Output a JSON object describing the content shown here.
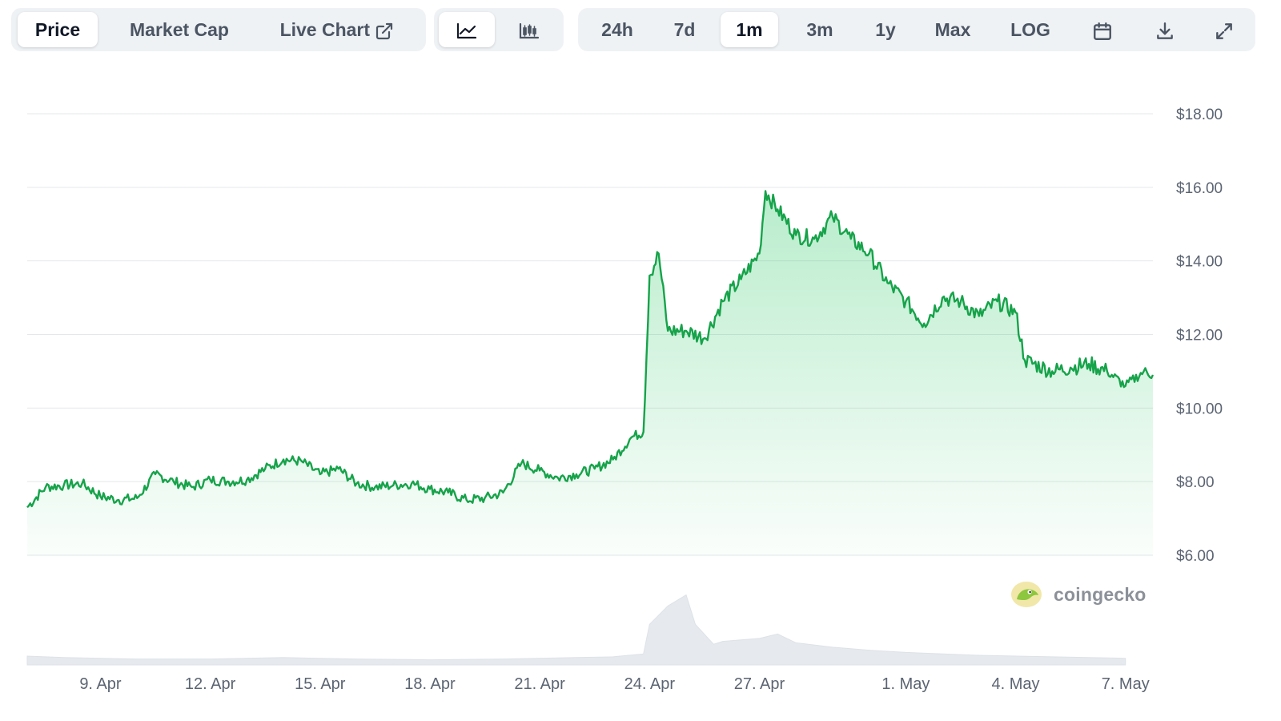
{
  "toolbar": {
    "tabs": [
      {
        "label": "Price",
        "active": true
      },
      {
        "label": "Market Cap",
        "active": false
      },
      {
        "label": "Live Chart",
        "active": false,
        "icon": "external-link-icon"
      }
    ],
    "chart_type_buttons": [
      {
        "icon": "line-chart-icon",
        "active": true
      },
      {
        "icon": "candlestick-chart-icon",
        "active": false
      }
    ],
    "ranges": [
      {
        "label": "24h",
        "active": false
      },
      {
        "label": "7d",
        "active": false
      },
      {
        "label": "1m",
        "active": true
      },
      {
        "label": "3m",
        "active": false
      },
      {
        "label": "1y",
        "active": false
      },
      {
        "label": "Max",
        "active": false
      },
      {
        "label": "LOG",
        "active": false
      }
    ],
    "action_icons": [
      "calendar-icon",
      "download-icon",
      "expand-icon"
    ]
  },
  "watermark": {
    "text": "coingecko"
  },
  "colors": {
    "line": "#16a34a",
    "fill": "#22c55e",
    "grid": "#e5e7eb",
    "volume": "#e6eaee"
  },
  "chart_data": {
    "type": "area",
    "title": "",
    "xlabel": "",
    "ylabel": "",
    "x_tick_labels": [
      "9. Apr",
      "12. Apr",
      "15. Apr",
      "18. Apr",
      "21. Apr",
      "24. Apr",
      "27. Apr",
      "1. May",
      "4. May",
      "7. May"
    ],
    "y_tick_labels": [
      "$6.00",
      "$8.00",
      "$10.00",
      "$12.00",
      "$14.00",
      "$16.00",
      "$18.00"
    ],
    "ylim": [
      6,
      18
    ],
    "xlim": [
      "2024-04-07",
      "2024-05-07"
    ],
    "grid": true,
    "series": [
      {
        "points": [
          [
            "2024-04-07",
            7.3
          ],
          [
            "2024-04-07T12:00",
            7.85
          ],
          [
            "2024-04-08",
            7.9
          ],
          [
            "2024-04-08T12:00",
            7.95
          ],
          [
            "2024-04-09",
            7.6
          ],
          [
            "2024-04-09T12:00",
            7.5
          ],
          [
            "2024-04-10",
            7.55
          ],
          [
            "2024-04-10T12:00",
            8.2
          ],
          [
            "2024-04-11",
            8.0
          ],
          [
            "2024-04-11T12:00",
            7.85
          ],
          [
            "2024-04-12",
            8.05
          ],
          [
            "2024-04-12T12:00",
            8.0
          ],
          [
            "2024-04-13",
            8.05
          ],
          [
            "2024-04-13T12:00",
            8.35
          ],
          [
            "2024-04-14",
            8.6
          ],
          [
            "2024-04-14T12:00",
            8.55
          ],
          [
            "2024-04-15",
            8.2
          ],
          [
            "2024-04-15T12:00",
            8.35
          ],
          [
            "2024-04-16",
            7.95
          ],
          [
            "2024-04-16T12:00",
            7.85
          ],
          [
            "2024-04-17",
            7.9
          ],
          [
            "2024-04-17T12:00",
            7.95
          ],
          [
            "2024-04-18",
            7.8
          ],
          [
            "2024-04-18T12:00",
            7.7
          ],
          [
            "2024-04-19",
            7.5
          ],
          [
            "2024-04-19T12:00",
            7.55
          ],
          [
            "2024-04-20",
            7.7
          ],
          [
            "2024-04-20T12:00",
            8.5
          ],
          [
            "2024-04-21",
            8.3
          ],
          [
            "2024-04-21T12:00",
            8.1
          ],
          [
            "2024-04-22",
            8.2
          ],
          [
            "2024-04-22T12:00",
            8.35
          ],
          [
            "2024-04-23",
            8.6
          ],
          [
            "2024-04-23T12:00",
            9.2
          ],
          [
            "2024-04-23T20:00",
            9.35
          ],
          [
            "2024-04-24",
            13.6
          ],
          [
            "2024-04-24T06:00",
            14.2
          ],
          [
            "2024-04-24T12:00",
            12.1
          ],
          [
            "2024-04-25",
            12.1
          ],
          [
            "2024-04-25T12:00",
            11.9
          ],
          [
            "2024-04-26",
            12.9
          ],
          [
            "2024-04-26T12:00",
            13.5
          ],
          [
            "2024-04-27",
            14.2
          ],
          [
            "2024-04-27T04:00",
            15.9
          ],
          [
            "2024-04-27T12:00",
            15.4
          ],
          [
            "2024-04-28",
            14.7
          ],
          [
            "2024-04-28T12:00",
            14.6
          ],
          [
            "2024-04-29",
            15.2
          ],
          [
            "2024-04-29T12:00",
            14.6
          ],
          [
            "2024-04-30",
            14.2
          ],
          [
            "2024-04-30T12:00",
            13.4
          ],
          [
            "2024-05-01",
            12.9
          ],
          [
            "2024-05-01T12:00",
            12.3
          ],
          [
            "2024-05-02",
            13.0
          ],
          [
            "2024-05-02T12:00",
            12.9
          ],
          [
            "2024-05-03",
            12.5
          ],
          [
            "2024-05-03T12:00",
            12.9
          ],
          [
            "2024-05-04",
            12.6
          ],
          [
            "2024-05-04T06:00",
            11.3
          ],
          [
            "2024-05-05",
            11.0
          ],
          [
            "2024-05-05T12:00",
            11.1
          ],
          [
            "2024-05-06",
            11.2
          ],
          [
            "2024-05-06T12:00",
            11.0
          ],
          [
            "2024-05-07",
            10.6
          ],
          [
            "2024-05-07T12:00",
            11.0
          ],
          [
            "2024-05-07T18:00",
            10.9
          ]
        ]
      }
    ],
    "volume": [
      [
        "2024-04-07",
        0.12
      ],
      [
        "2024-04-08",
        0.1
      ],
      [
        "2024-04-10",
        0.08
      ],
      [
        "2024-04-12",
        0.08
      ],
      [
        "2024-04-14",
        0.1
      ],
      [
        "2024-04-16",
        0.08
      ],
      [
        "2024-04-18",
        0.07
      ],
      [
        "2024-04-20",
        0.08
      ],
      [
        "2024-04-22",
        0.1
      ],
      [
        "2024-04-23",
        0.11
      ],
      [
        "2024-04-23T20:00",
        0.15
      ],
      [
        "2024-04-24",
        0.55
      ],
      [
        "2024-04-24T12:00",
        0.8
      ],
      [
        "2024-04-25",
        0.95
      ],
      [
        "2024-04-25T06:00",
        0.55
      ],
      [
        "2024-04-25T18:00",
        0.28
      ],
      [
        "2024-04-26",
        0.32
      ],
      [
        "2024-04-27",
        0.36
      ],
      [
        "2024-04-27T12:00",
        0.42
      ],
      [
        "2024-04-28",
        0.3
      ],
      [
        "2024-04-29",
        0.24
      ],
      [
        "2024-04-30",
        0.2
      ],
      [
        "2024-05-01",
        0.17
      ],
      [
        "2024-05-03",
        0.13
      ],
      [
        "2024-05-05",
        0.11
      ],
      [
        "2024-05-07",
        0.09
      ]
    ]
  }
}
